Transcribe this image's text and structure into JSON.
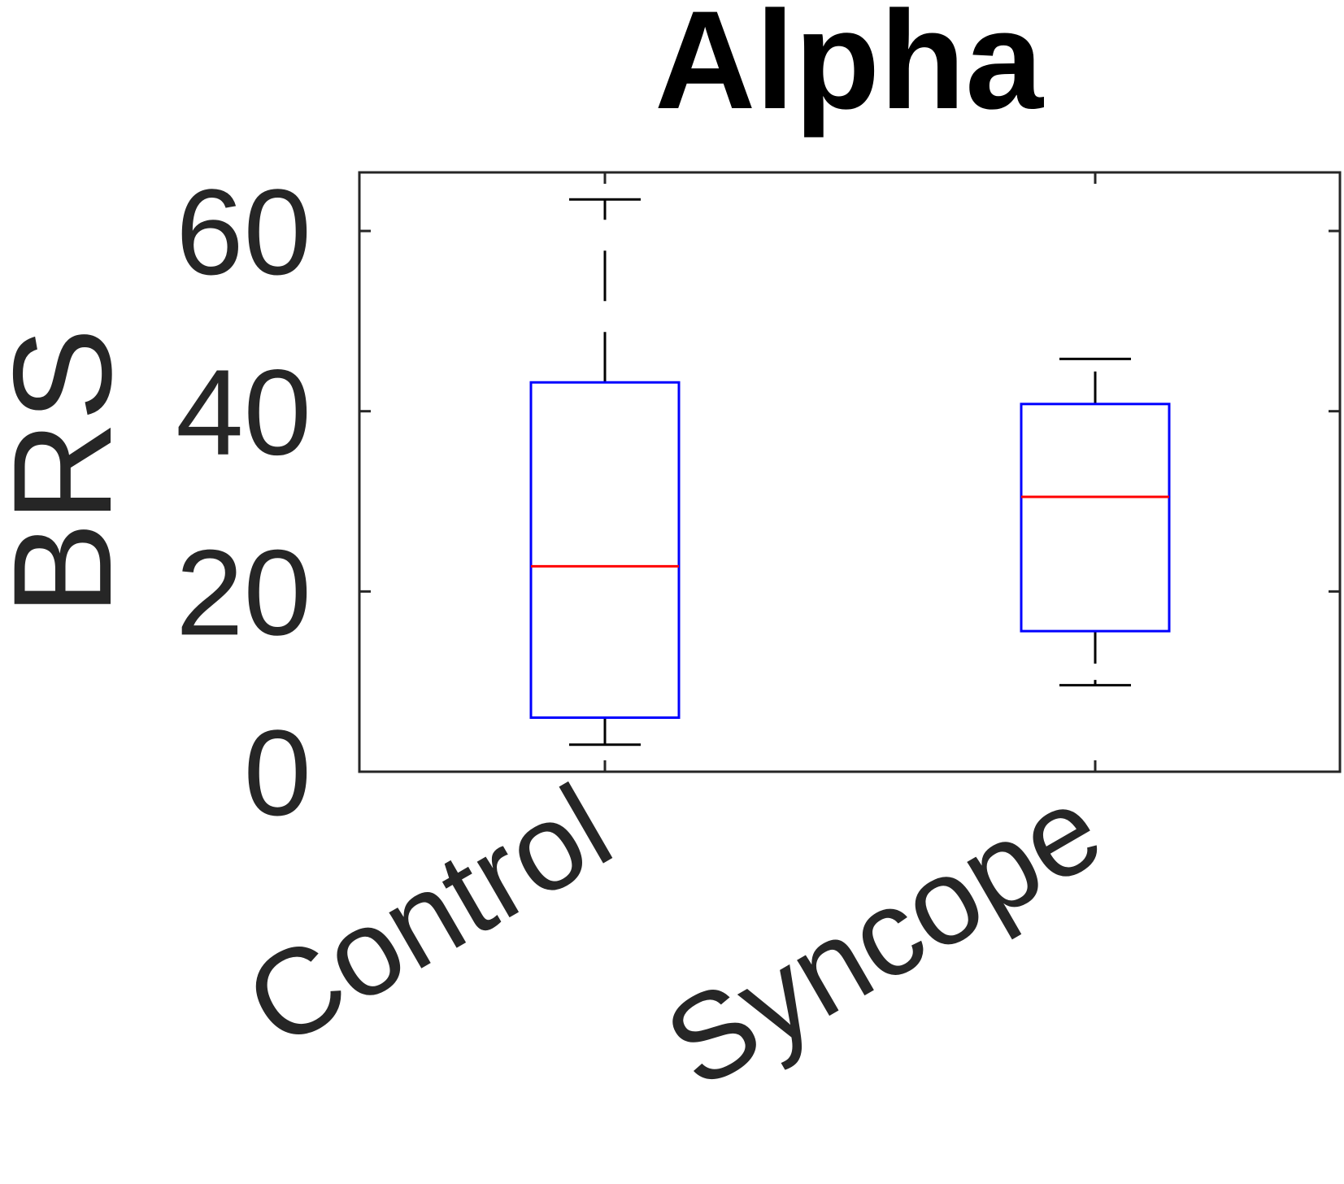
{
  "chart_data": {
    "type": "box",
    "title": "Alpha",
    "xlabel": "",
    "ylabel": "BRS",
    "ylim": [
      0,
      66.5
    ],
    "yticks": [
      0,
      20,
      40,
      60
    ],
    "ytick_labels": [
      "0",
      "20",
      "40",
      "60"
    ],
    "categories": [
      "Control",
      "Syncope"
    ],
    "box_color": "#0000ff",
    "median_color": "#ff0000",
    "whisker_color": "#000000",
    "grid": false,
    "boxes": [
      {
        "category": "Control",
        "whisker_low": 3.0,
        "q1": 6.0,
        "median": 22.8,
        "q3": 43.2,
        "whisker_high": 63.5
      },
      {
        "category": "Syncope",
        "whisker_low": 9.6,
        "q1": 15.6,
        "median": 30.5,
        "q3": 40.8,
        "whisker_high": 45.8
      }
    ]
  }
}
